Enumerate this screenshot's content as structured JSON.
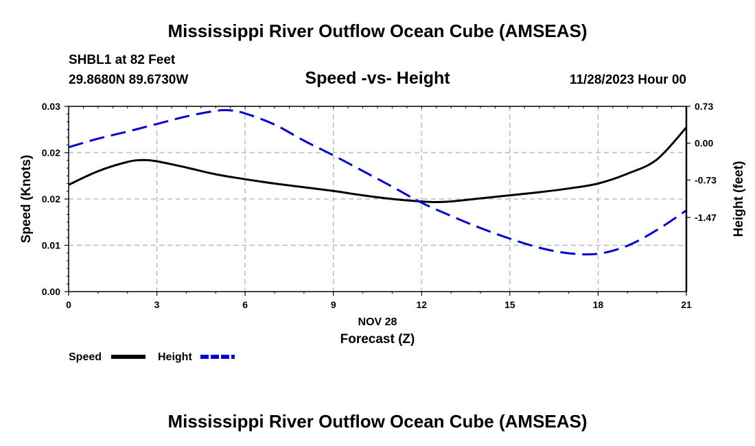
{
  "page": {
    "title": "Mississippi River Outflow Ocean Cube (AMSEAS)",
    "footer_title": "Mississippi River Outflow Ocean Cube (AMSEAS)",
    "station": "SHBL1 at 82 Feet",
    "coordinates": "29.8680N  89.6730W",
    "datetime": "11/28/2023 Hour 00"
  },
  "chart_data": {
    "type": "line",
    "title": "Speed -vs- Height",
    "xlabel": "Forecast (Z)",
    "xlabel_date": "NOV 28",
    "x_ticks": [
      "0",
      "3",
      "6",
      "9",
      "12",
      "15",
      "18",
      "21"
    ],
    "x_tick_values": [
      0,
      3,
      6,
      9,
      12,
      15,
      18,
      21
    ],
    "xlim": [
      0,
      21
    ],
    "y_left": {
      "label": "Speed (Knots)",
      "ylim": [
        0,
        0.03
      ],
      "ticks": [
        "0.00",
        "0.01",
        "0.02",
        "0.02",
        "0.03"
      ],
      "tick_values": [
        0,
        0.0075,
        0.015,
        0.0225,
        0.03
      ]
    },
    "y_right": {
      "label": "Height (feet)",
      "ylim": [
        -2.94,
        0.73
      ],
      "ticks": [
        "0.73",
        "0.00",
        "-0.73",
        "-1.47"
      ],
      "tick_values": [
        0.73,
        0.0,
        -0.73,
        -1.47
      ]
    },
    "grid": true,
    "legend_position": "bottom-left",
    "series": [
      {
        "name": "Speed",
        "axis": "left",
        "color": "#000000",
        "style": "solid",
        "x": [
          0,
          1,
          2,
          2.5,
          3,
          4,
          5,
          6,
          7,
          8,
          9,
          10,
          11,
          12,
          12.5,
          13,
          14,
          15,
          16,
          17,
          18,
          19,
          20,
          21
        ],
        "values": [
          0.0173,
          0.0195,
          0.021,
          0.0213,
          0.0211,
          0.0201,
          0.019,
          0.0182,
          0.0175,
          0.0169,
          0.0163,
          0.0156,
          0.015,
          0.0146,
          0.0145,
          0.0146,
          0.0151,
          0.0156,
          0.0161,
          0.0167,
          0.0175,
          0.0191,
          0.0214,
          0.0266
        ]
      },
      {
        "name": "Height",
        "axis": "right",
        "color": "#0000cc",
        "style": "dashed",
        "x": [
          0,
          1,
          2,
          3,
          4,
          5,
          5.5,
          6,
          7,
          8,
          9,
          10,
          11,
          12,
          13,
          14,
          15,
          16,
          17,
          18,
          19,
          20,
          21
        ],
        "values": [
          -0.08,
          0.09,
          0.23,
          0.38,
          0.53,
          0.64,
          0.65,
          0.59,
          0.37,
          0.05,
          -0.24,
          -0.55,
          -0.86,
          -1.18,
          -1.44,
          -1.68,
          -1.89,
          -2.07,
          -2.18,
          -2.19,
          -2.03,
          -1.72,
          -1.33
        ]
      }
    ]
  }
}
